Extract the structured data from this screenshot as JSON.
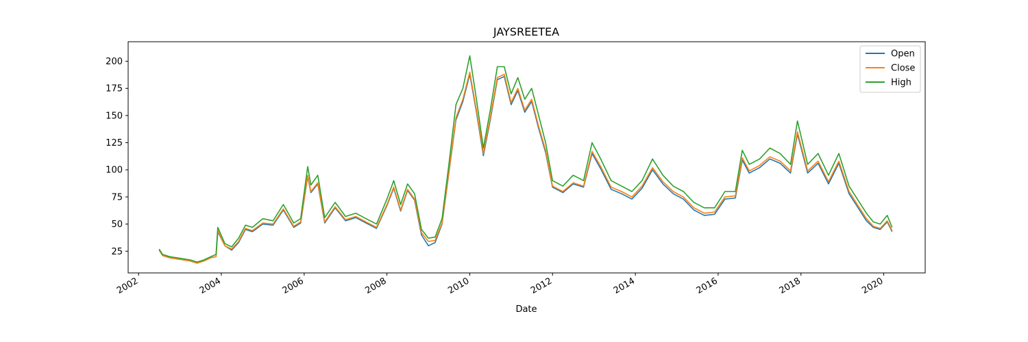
{
  "chart_data": {
    "type": "line",
    "title": "JAYSREETEA",
    "xlabel": "Date",
    "ylabel": "",
    "xlim": [
      "2001-10-01",
      "2021-01-01"
    ],
    "ylim": [
      5,
      218
    ],
    "x_ticks": [
      "2002",
      "2004",
      "2006",
      "2008",
      "2010",
      "2012",
      "2014",
      "2016",
      "2018",
      "2020"
    ],
    "y_ticks": [
      25,
      50,
      75,
      100,
      125,
      150,
      175,
      200
    ],
    "grid": false,
    "legend_position": "top-right",
    "series": [
      {
        "name": "Open",
        "color": "#1f77b4"
      },
      {
        "name": "Close",
        "color": "#ff7f0e"
      },
      {
        "name": "High",
        "color": "#2ca02c"
      }
    ],
    "x": [
      "2002-07-01",
      "2002-08-01",
      "2002-10-01",
      "2002-12-01",
      "2003-02-01",
      "2003-04-01",
      "2003-06-01",
      "2003-08-01",
      "2003-10-01",
      "2003-11-15",
      "2003-12-01",
      "2004-02-01",
      "2004-04-01",
      "2004-06-01",
      "2004-08-01",
      "2004-10-01",
      "2005-01-01",
      "2005-04-01",
      "2005-07-01",
      "2005-10-01",
      "2005-12-01",
      "2006-02-01",
      "2006-03-01",
      "2006-05-01",
      "2006-07-01",
      "2006-10-01",
      "2007-01-01",
      "2007-04-01",
      "2007-07-01",
      "2007-10-01",
      "2008-01-01",
      "2008-03-01",
      "2008-05-01",
      "2008-07-01",
      "2008-09-01",
      "2008-11-01",
      "2009-01-01",
      "2009-03-01",
      "2009-05-01",
      "2009-07-01",
      "2009-09-01",
      "2009-11-01",
      "2010-01-01",
      "2010-03-01",
      "2010-05-01",
      "2010-07-01",
      "2010-09-01",
      "2010-11-01",
      "2011-01-01",
      "2011-03-01",
      "2011-05-01",
      "2011-07-01",
      "2011-09-01",
      "2011-11-01",
      "2012-01-01",
      "2012-04-01",
      "2012-07-01",
      "2012-10-01",
      "2012-12-15",
      "2013-03-01",
      "2013-06-01",
      "2013-09-01",
      "2013-12-01",
      "2014-03-01",
      "2014-06-01",
      "2014-09-01",
      "2014-12-01",
      "2015-03-01",
      "2015-06-01",
      "2015-09-01",
      "2015-12-01",
      "2016-03-01",
      "2016-06-01",
      "2016-08-01",
      "2016-10-01",
      "2017-01-01",
      "2017-04-01",
      "2017-07-01",
      "2017-10-01",
      "2017-12-01",
      "2018-03-01",
      "2018-06-01",
      "2018-09-01",
      "2018-12-01",
      "2019-03-01",
      "2019-06-01",
      "2019-08-01",
      "2019-10-01",
      "2019-12-01",
      "2020-02-01",
      "2020-03-15"
    ],
    "high": [
      27,
      22,
      20,
      19,
      18,
      17,
      15,
      17,
      20,
      22,
      47,
      32,
      29,
      37,
      49,
      47,
      55,
      53,
      68,
      51,
      55,
      103,
      86,
      95,
      56,
      70,
      57,
      60,
      55,
      50,
      73,
      90,
      68,
      87,
      78,
      45,
      37,
      38,
      55,
      105,
      160,
      175,
      205,
      165,
      120,
      155,
      195,
      195,
      170,
      185,
      165,
      175,
      150,
      125,
      90,
      85,
      95,
      90,
      125,
      110,
      90,
      85,
      80,
      90,
      110,
      95,
      85,
      80,
      70,
      65,
      65,
      80,
      80,
      118,
      105,
      110,
      120,
      115,
      105,
      145,
      105,
      115,
      95,
      115,
      85,
      70,
      60,
      52,
      50,
      58,
      47
    ],
    "close": [
      26,
      21,
      19,
      18,
      17,
      16,
      14,
      16,
      19,
      20,
      44,
      30,
      27,
      34,
      46,
      44,
      51,
      50,
      64,
      48,
      52,
      95,
      80,
      88,
      52,
      66,
      54,
      57,
      52,
      47,
      68,
      84,
      63,
      82,
      73,
      42,
      34,
      35,
      51,
      98,
      148,
      165,
      190,
      155,
      115,
      148,
      185,
      188,
      162,
      175,
      155,
      165,
      140,
      118,
      85,
      80,
      88,
      85,
      117,
      103,
      84,
      80,
      75,
      85,
      102,
      89,
      80,
      75,
      65,
      60,
      61,
      75,
      76,
      111,
      99,
      104,
      112,
      108,
      99,
      135,
      99,
      108,
      89,
      108,
      80,
      65,
      55,
      48,
      46,
      53,
      44
    ],
    "open": [
      26,
      21,
      19,
      18,
      17,
      16,
      14,
      16,
      19,
      20,
      43,
      30,
      26,
      33,
      45,
      43,
      50,
      49,
      63,
      47,
      51,
      94,
      79,
      87,
      51,
      65,
      53,
      56,
      51,
      46,
      67,
      83,
      62,
      81,
      72,
      40,
      30,
      33,
      50,
      97,
      146,
      163,
      188,
      153,
      113,
      146,
      183,
      186,
      160,
      173,
      153,
      163,
      138,
      116,
      84,
      79,
      87,
      84,
      115,
      101,
      82,
      78,
      73,
      83,
      100,
      87,
      78,
      73,
      63,
      58,
      59,
      73,
      74,
      109,
      97,
      102,
      110,
      106,
      97,
      133,
      97,
      106,
      87,
      106,
      78,
      63,
      53,
      47,
      45,
      52,
      43
    ]
  }
}
